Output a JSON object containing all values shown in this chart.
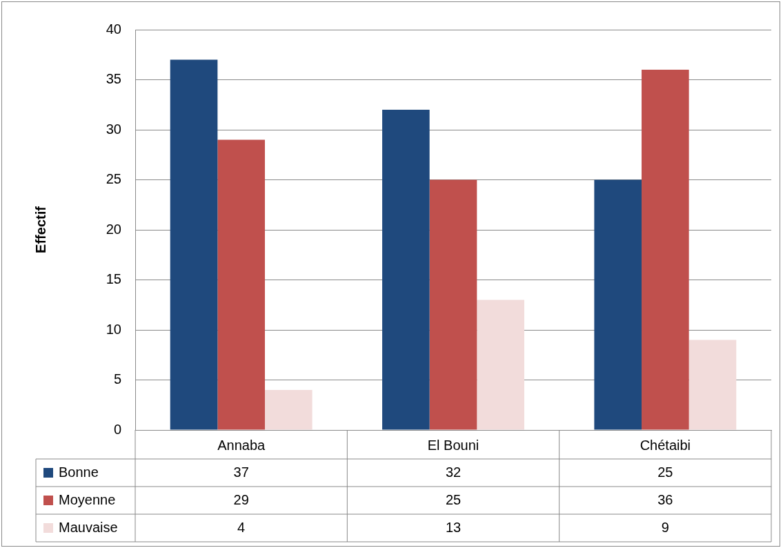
{
  "chart_data": {
    "type": "bar",
    "ylabel": "Effectif",
    "categories": [
      "Annaba",
      "El Bouni",
      "Chétaibi"
    ],
    "series": [
      {
        "name": "Bonne",
        "color": "#1f497d",
        "values": [
          37,
          32,
          25
        ]
      },
      {
        "name": "Moyenne",
        "color": "#c0504d",
        "values": [
          29,
          25,
          36
        ]
      },
      {
        "name": "Mauvaise",
        "color": "#f2dcdb",
        "values": [
          4,
          13,
          9
        ]
      }
    ],
    "ylim": [
      0,
      40
    ],
    "yticks": [
      0,
      5,
      10,
      15,
      20,
      25,
      30,
      35,
      40
    ],
    "grid": "y",
    "legend": "bottom",
    "data_labels": true
  }
}
